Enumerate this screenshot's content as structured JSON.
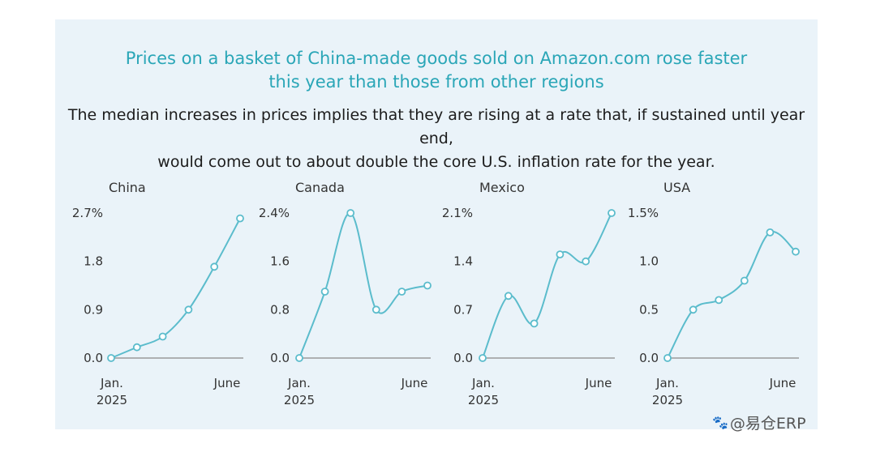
{
  "title_lines": [
    "Prices on a basket of China-made goods sold on Amazon.com rose faster",
    "this year than those from other regions"
  ],
  "subtitle_lines": [
    "The median increases in prices implies that they are rising at a rate that, if sustained until year end,",
    "would come out to about double the core U.S. inflation rate for the year."
  ],
  "watermark": "@易仓ERP",
  "colors": {
    "line": "#5bbccc",
    "point_fill": "#ffffff",
    "axis": "#9a9a9a",
    "title": "#2aa6b7",
    "panel_bg": "#eaf3f9"
  },
  "chart_data": [
    {
      "type": "line",
      "title": "China",
      "x": [
        "2025-01",
        "2025-02",
        "2025-03",
        "2025-04",
        "2025-05",
        "2025-06"
      ],
      "x_tick_labels": [
        [
          "Jan.",
          "2025"
        ],
        [
          "June"
        ]
      ],
      "values": [
        0.0,
        0.2,
        0.4,
        0.9,
        1.7,
        2.6
      ],
      "yticks": [
        "0.0",
        "0.9",
        "1.8",
        "2.7%"
      ],
      "ylim": [
        0,
        2.7
      ]
    },
    {
      "type": "line",
      "title": "Canada",
      "x": [
        "2025-01",
        "2025-02",
        "2025-03",
        "2025-04",
        "2025-05",
        "2025-06"
      ],
      "x_tick_labels": [
        [
          "Jan.",
          "2025"
        ],
        [
          "June"
        ]
      ],
      "values": [
        0.0,
        1.1,
        2.4,
        0.8,
        1.1,
        1.2
      ],
      "yticks": [
        "0.0",
        "0.8",
        "1.6",
        "2.4%"
      ],
      "ylim": [
        0,
        2.4
      ]
    },
    {
      "type": "line",
      "title": "Mexico",
      "x": [
        "2025-01",
        "2025-02",
        "2025-03",
        "2025-04",
        "2025-05",
        "2025-06"
      ],
      "x_tick_labels": [
        [
          "Jan.",
          "2025"
        ],
        [
          "June"
        ]
      ],
      "values": [
        0.0,
        0.9,
        0.5,
        1.5,
        1.4,
        2.1
      ],
      "yticks": [
        "0.0",
        "0.7",
        "1.4",
        "2.1%"
      ],
      "ylim": [
        0,
        2.1
      ]
    },
    {
      "type": "line",
      "title": "USA",
      "x": [
        "2025-01",
        "2025-02",
        "2025-03",
        "2025-04",
        "2025-05",
        "2025-06"
      ],
      "x_tick_labels": [
        [
          "Jan.",
          "2025"
        ],
        [
          "June"
        ]
      ],
      "values": [
        0.0,
        0.5,
        0.6,
        0.8,
        1.3,
        1.1
      ],
      "yticks": [
        "0.0",
        "0.5",
        "1.0",
        "1.5%"
      ],
      "ylim": [
        0,
        1.5
      ]
    }
  ]
}
